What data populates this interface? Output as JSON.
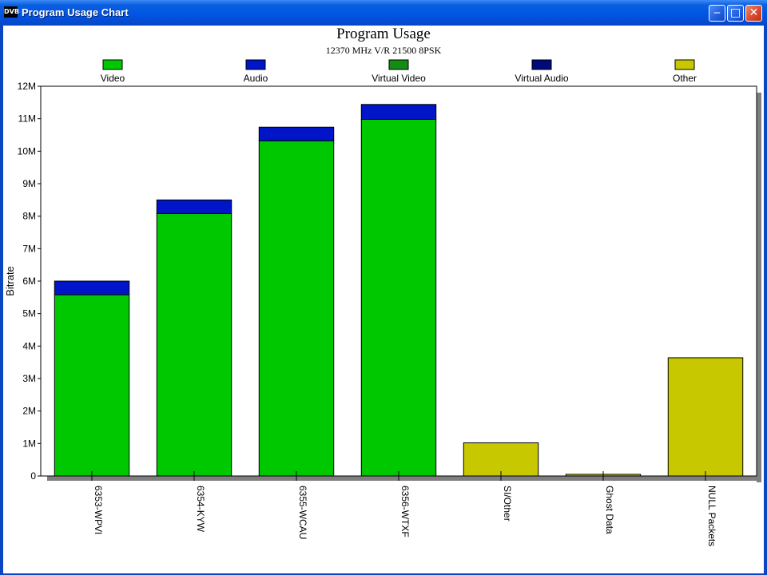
{
  "window": {
    "title": "Program Usage Chart",
    "app_icon_text": "DVB",
    "minimize_glyph": "‒",
    "maximize_glyph": "□",
    "close_glyph": "✕"
  },
  "colors": {
    "video": "#00c800",
    "audio": "#0014c8",
    "virtual_video": "#148c14",
    "virtual_audio": "#000a7a",
    "other": "#c8c800",
    "shadow": "#7f7f7f"
  },
  "chart_data": {
    "type": "bar",
    "stacked": true,
    "title": "Program Usage",
    "subtitle": "12370 MHz V/R 21500 8PSK",
    "xlabel": "",
    "ylabel": "Bitrate",
    "ylim": [
      0,
      12000000
    ],
    "y_ticks": [
      0,
      1000000,
      2000000,
      3000000,
      4000000,
      5000000,
      6000000,
      7000000,
      8000000,
      9000000,
      10000000,
      11000000,
      12000000
    ],
    "y_tick_labels": [
      "0",
      "1M",
      "2M",
      "3M",
      "4M",
      "5M",
      "6M",
      "7M",
      "8M",
      "9M",
      "10M",
      "11M",
      "12M"
    ],
    "grid": false,
    "legend_position": "top",
    "categories": [
      "6353-WPVI",
      "6354-KYW",
      "6355-WCAU",
      "6356-WTXF",
      "SI/Other",
      "Ghost Data",
      "NULL Packets"
    ],
    "series": [
      {
        "name": "Video",
        "color": "#00c800",
        "values": [
          5580000,
          8080000,
          10320000,
          10980000,
          0,
          0,
          0
        ]
      },
      {
        "name": "Audio",
        "color": "#0014c8",
        "values": [
          420000,
          420000,
          420000,
          460000,
          0,
          0,
          0
        ]
      },
      {
        "name": "Virtual Video",
        "color": "#148c14",
        "values": [
          0,
          0,
          0,
          0,
          0,
          0,
          0
        ]
      },
      {
        "name": "Virtual Audio",
        "color": "#000a7a",
        "values": [
          0,
          0,
          0,
          0,
          0,
          0,
          0
        ]
      },
      {
        "name": "Other",
        "color": "#c8c800",
        "values": [
          0,
          0,
          0,
          0,
          1020000,
          50000,
          3640000
        ]
      }
    ]
  }
}
